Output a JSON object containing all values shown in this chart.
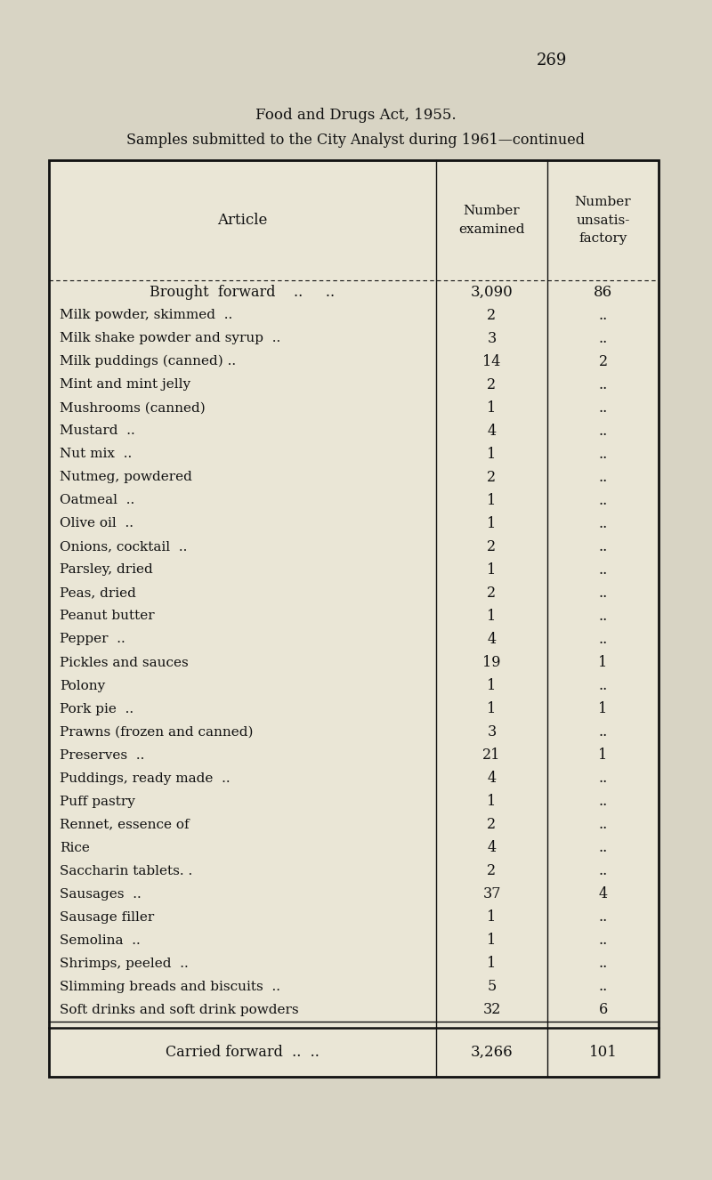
{
  "page_number": "269",
  "title_line1": "Food and Drugs Act, 1955.",
  "title_line2": "Samples submitted to the City Analyst during 1961—continued",
  "rows": [
    [
      "Brought forward",
      "..",
      "..",
      "3,090",
      "86"
    ],
    [
      "Milk powder, skimmed  ..",
      "..",
      "..",
      "2",
      ".."
    ],
    [
      "Milk shake powder and syrup  ..",
      "..",
      "..",
      "3",
      ".."
    ],
    [
      "Milk puddings (canned) ..",
      "..",
      "..",
      "14",
      "2"
    ],
    [
      "Mint and mint jelly",
      "..",
      "..",
      "2",
      ".."
    ],
    [
      "Mushrooms (canned)",
      "..",
      "..",
      "1",
      ".."
    ],
    [
      "Mustard  ..",
      "..",
      "..",
      "4",
      ".."
    ],
    [
      "Nut mix  ..",
      "..",
      "..",
      "1",
      ".."
    ],
    [
      "Nutmeg, powdered",
      "..",
      "..",
      "2",
      ".."
    ],
    [
      "Oatmeal  ..",
      "..",
      "..",
      "1",
      ".."
    ],
    [
      "Olive oil  ..",
      "..",
      "..",
      "1",
      ".."
    ],
    [
      "Onions, cocktail  ..",
      "..",
      "..",
      "2",
      ".."
    ],
    [
      "Parsley, dried",
      "..",
      "..",
      "1",
      ".."
    ],
    [
      "Peas, dried",
      "..",
      "..",
      "2",
      ".."
    ],
    [
      "Peanut butter",
      "..",
      "..",
      "1",
      ".."
    ],
    [
      "Pepper  ..",
      "..",
      "..",
      "4",
      ".."
    ],
    [
      "Pickles and sauces",
      "..",
      "..",
      "19",
      "1"
    ],
    [
      "Polony",
      "..",
      "..",
      "1",
      ".."
    ],
    [
      "Pork pie  ..",
      "..",
      "..",
      "1",
      "1"
    ],
    [
      "Prawns (frozen and canned)",
      "..",
      "..",
      "3",
      ".."
    ],
    [
      "Preserves  ..",
      "..",
      "..",
      "21",
      "1"
    ],
    [
      "Puddings, ready made  ..",
      "..",
      "..",
      "4",
      ".."
    ],
    [
      "Puff pastry",
      "..",
      "..",
      "1",
      ".."
    ],
    [
      "Rennet, essence of",
      "..",
      "..",
      "2",
      ".."
    ],
    [
      "Rice",
      "..",
      "..",
      "4",
      ".."
    ],
    [
      "Saccharin tablets. .",
      "..",
      "..",
      "2",
      ".."
    ],
    [
      "Sausages  ..",
      "..",
      "..",
      "37",
      "4"
    ],
    [
      "Sausage filler",
      "..",
      "..",
      "1",
      ".."
    ],
    [
      "Semolina  ..",
      "..",
      "..",
      "1",
      ".."
    ],
    [
      "Shrimps, peeled  ..",
      "..",
      "..",
      "1",
      ".."
    ],
    [
      "Slimming breads and biscuits  ..",
      "..",
      "..",
      "5",
      ".."
    ],
    [
      "Soft drinks and soft drink powders",
      "..",
      "..",
      "32",
      "6"
    ]
  ],
  "footer_row": [
    "Carried forward",
    "..",
    "..",
    "3,266",
    "101"
  ],
  "bg_color": "#d8d4c4",
  "table_bg": "#eae6d6",
  "text_color": "#111111",
  "border_color": "#111111"
}
